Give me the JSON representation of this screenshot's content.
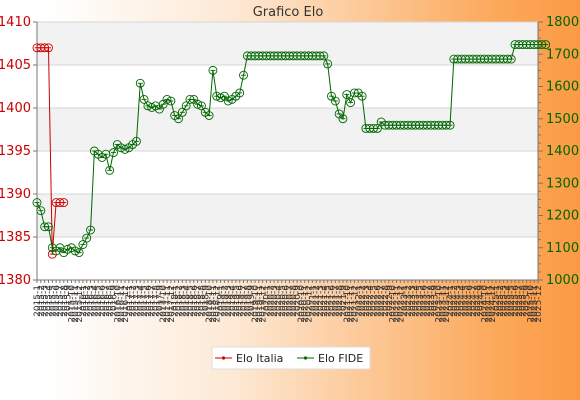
{
  "chart_data": {
    "type": "line",
    "title": "Grafico Elo",
    "xlabel": "",
    "grid": true,
    "legend_position": "bottom",
    "x_tick_labels": [
      "2015-1",
      "2015-2",
      "2015-3",
      "2015-4",
      "2015-5",
      "2015-6",
      "2015-7",
      "2015-8",
      "2015-9",
      "2015-10",
      "2015-11",
      "2015-12",
      "2016-1",
      "2016-2",
      "2016-3",
      "2016-4",
      "2016-5",
      "2016-6",
      "2016-7",
      "2016-8",
      "2016-9",
      "2016-10",
      "2016-11",
      "2016-12",
      "2017-1",
      "2017-2",
      "2017-3",
      "2017-4",
      "2017-5",
      "2017-6",
      "2017-7",
      "2017-8",
      "2017-9",
      "2017-10",
      "2017-11",
      "2017-12",
      "2018-1",
      "2018-2",
      "2018-3",
      "2018-4",
      "2018-5",
      "2018-6",
      "2018-7",
      "2018-8",
      "2018-9",
      "2018-10",
      "2018-11",
      "2018-12",
      "2019-1",
      "2019-2",
      "2019-3",
      "2019-4",
      "2019-5",
      "2019-6",
      "2019-7",
      "2019-8",
      "2019-9",
      "2019-10",
      "2019-11",
      "2019-12",
      "2020-1",
      "2020-2",
      "2020-3",
      "2020-4",
      "2020-5",
      "2020-6",
      "2020-7",
      "2020-8",
      "2020-9",
      "2020-10",
      "2020-11",
      "2020-12",
      "2021-1",
      "2021-2",
      "2021-3",
      "2021-4",
      "2021-5",
      "2021-6",
      "2021-7",
      "2021-8",
      "2021-9",
      "2021-10",
      "2021-11",
      "2021-12",
      "2022-1",
      "2022-2",
      "2022-3",
      "2022-4",
      "2022-5",
      "2022-6",
      "2022-7",
      "2022-8",
      "2022-9",
      "2022-10",
      "2022-11",
      "2022-12",
      "2023-1",
      "2023-2",
      "2023-3",
      "2023-4",
      "2023-5",
      "2023-6",
      "2023-7",
      "2023-8",
      "2023-9",
      "2023-10",
      "2023-11",
      "2023-12",
      "2024-1",
      "2024-2",
      "2024-3",
      "2024-4",
      "2024-5",
      "2024-6",
      "2024-7",
      "2024-8",
      "2024-9",
      "2024-10",
      "2024-11",
      "2024-12",
      "2025-1",
      "2025-2",
      "2025-3",
      "2025-4",
      "2025-5",
      "2025-6",
      "2025-7",
      "2025-8",
      "2025-9",
      "2025-10",
      "2025-11",
      "2025-12"
    ],
    "y_left": {
      "ylim": [
        1380,
        1410
      ],
      "ticks": [
        1380,
        1385,
        1390,
        1395,
        1400,
        1405,
        1410
      ]
    },
    "y_right": {
      "ylim": [
        1000,
        1800
      ],
      "ticks": [
        1000,
        1100,
        1200,
        1300,
        1400,
        1500,
        1600,
        1700,
        1800
      ]
    },
    "series": [
      {
        "name": "Elo Italia",
        "axis": "left",
        "color": "#cc0000",
        "values": [
          1407,
          1407,
          1407,
          1407,
          1383,
          1389,
          1389,
          1389
        ]
      },
      {
        "name": "Elo FIDE",
        "axis": "right",
        "color": "#006600",
        "values": [
          1240,
          1215,
          1165,
          1165,
          1100,
          1090,
          1100,
          1085,
          1095,
          1100,
          1090,
          1085,
          1110,
          1130,
          1155,
          1400,
          1390,
          1380,
          1390,
          1340,
          1395,
          1420,
          1410,
          1405,
          1410,
          1420,
          1430,
          1610,
          1560,
          1540,
          1535,
          1540,
          1530,
          1545,
          1560,
          1555,
          1510,
          1500,
          1520,
          1540,
          1560,
          1560,
          1545,
          1540,
          1520,
          1510,
          1650,
          1570,
          1565,
          1570,
          1555,
          1560,
          1570,
          1580,
          1635,
          1695,
          1695,
          1695,
          1695,
          1695,
          1695,
          1695,
          1695,
          1695,
          1695,
          1695,
          1695,
          1695,
          1695,
          1695,
          1695,
          1695,
          1695,
          1695,
          1695,
          1695,
          1670,
          1570,
          1555,
          1515,
          1500,
          1575,
          1550,
          1580,
          1580,
          1570,
          1470,
          1470,
          1470,
          1470,
          1490,
          1480,
          1480,
          1480,
          1480,
          1480,
          1480,
          1480,
          1480,
          1480,
          1480,
          1480,
          1480,
          1480,
          1480,
          1480,
          1480,
          1480,
          1480,
          1685,
          1685,
          1685,
          1685,
          1685,
          1685,
          1685,
          1685,
          1685,
          1685,
          1685,
          1685,
          1685,
          1685,
          1685,
          1685,
          1730,
          1730,
          1730,
          1730,
          1730,
          1730,
          1730,
          1730,
          1730
        ]
      }
    ]
  }
}
